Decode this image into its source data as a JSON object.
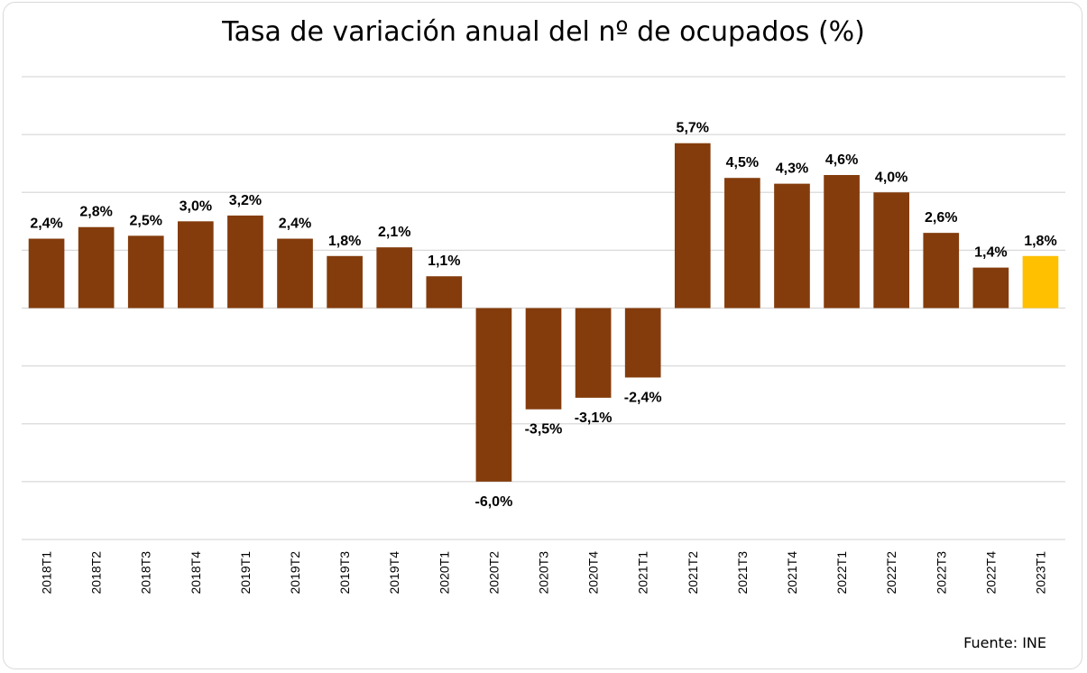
{
  "chart_data": {
    "type": "bar",
    "title": "Tasa de variación anual del nº de ocupados (%)",
    "source": "Fuente: INE",
    "categories": [
      "2018T1",
      "2018T2",
      "2018T3",
      "2018T4",
      "2019T1",
      "2019T2",
      "2019T3",
      "2019T4",
      "2020T1",
      "2020T2",
      "2020T3",
      "2020T4",
      "2021T1",
      "2021T2",
      "2021T3",
      "2021T4",
      "2022T1",
      "2022T2",
      "2022T3",
      "2022T4",
      "2023T1"
    ],
    "values": [
      2.4,
      2.8,
      2.5,
      3.0,
      3.2,
      2.4,
      1.8,
      2.1,
      1.1,
      -6.0,
      -3.5,
      -3.1,
      -2.4,
      5.7,
      4.5,
      4.3,
      4.6,
      4.0,
      2.6,
      1.4,
      1.8
    ],
    "labels": [
      "2,4%",
      "2,8%",
      "2,5%",
      "3,0%",
      "3,2%",
      "2,4%",
      "1,8%",
      "2,1%",
      "1,1%",
      "-6,0%",
      "-3,5%",
      "-3,1%",
      "-2,4%",
      "5,7%",
      "4,5%",
      "4,3%",
      "4,6%",
      "4,0%",
      "2,6%",
      "1,4%",
      "1,8%"
    ],
    "ylim": [
      -8,
      8
    ],
    "grid": true,
    "legend": "none",
    "bar_color": "#843c0c",
    "highlight_color": "#ffc000",
    "highlight_index": 20,
    "gridline_color": "#d9d9d9"
  }
}
